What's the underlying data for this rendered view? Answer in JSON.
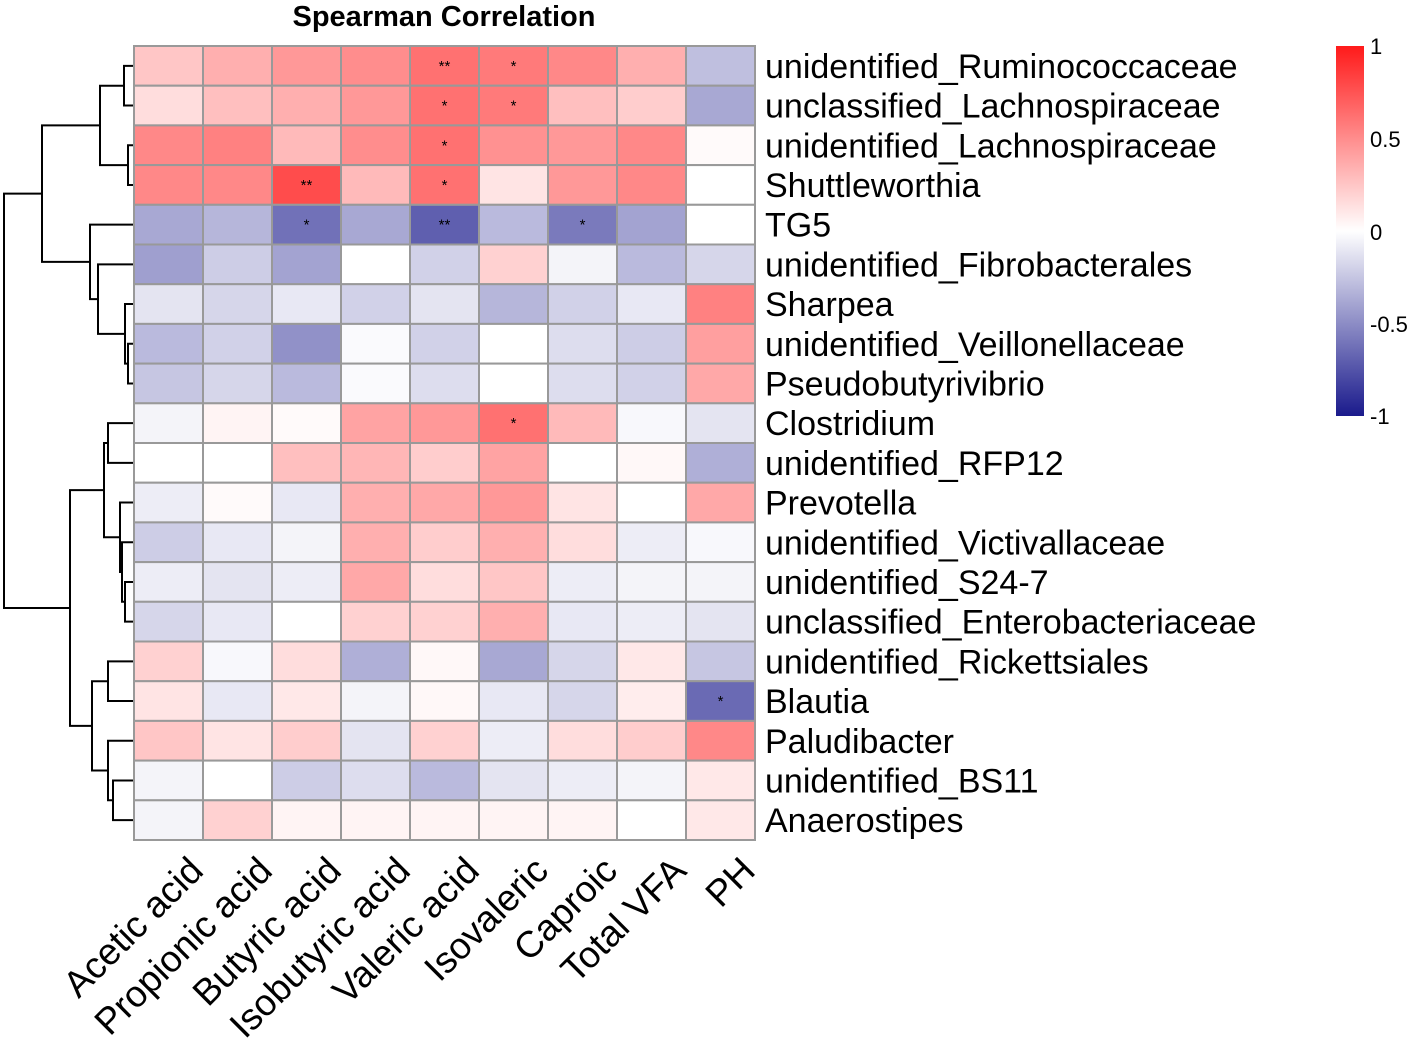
{
  "chart_data": {
    "type": "heatmap",
    "title": "Spearman Correlation",
    "columns": [
      "Acetic acid",
      "Propionic acid",
      "Butyric acid",
      "Isobutyric acid",
      "Valeric acid",
      "Isovaleric",
      "Caproic",
      "Total VFA",
      "PH"
    ],
    "rows": [
      "unidentified_Ruminococcaceae",
      "unclassified_Lachnospiraceae",
      "unidentified_Lachnospiraceae",
      "Shuttleworthia",
      "TG5",
      "unidentified_Fibrobacterales",
      "Sharpea",
      "unidentified_Veillonellaceae",
      "Pseudobutyrivibrio",
      "Clostridium",
      "unidentified_RFP12",
      "Prevotella",
      "unidentified_Victivallaceae",
      "unidentified_S24-7",
      "unclassified_Enterobacteriaceae",
      "unidentified_Rickettsiales",
      "Blautia",
      "Paludibacter",
      "unidentified_BS11",
      "Anaerostipes"
    ],
    "values": [
      [
        0.25,
        0.35,
        0.45,
        0.5,
        0.62,
        0.58,
        0.52,
        0.35,
        -0.28
      ],
      [
        0.15,
        0.28,
        0.35,
        0.45,
        0.62,
        0.58,
        0.28,
        0.22,
        -0.38
      ],
      [
        0.52,
        0.55,
        0.3,
        0.5,
        0.62,
        0.48,
        0.45,
        0.52,
        0.02
      ],
      [
        0.52,
        0.52,
        0.78,
        0.3,
        0.62,
        0.12,
        0.45,
        0.52,
        0.0
      ],
      [
        -0.38,
        -0.32,
        -0.62,
        -0.38,
        -0.7,
        -0.3,
        -0.58,
        -0.4,
        0.0
      ],
      [
        -0.42,
        -0.22,
        -0.4,
        0.0,
        -0.2,
        0.2,
        -0.05,
        -0.3,
        -0.18
      ],
      [
        -0.12,
        -0.18,
        -0.1,
        -0.2,
        -0.12,
        -0.32,
        -0.2,
        -0.1,
        0.55
      ],
      [
        -0.3,
        -0.2,
        -0.48,
        -0.02,
        -0.2,
        0.0,
        -0.15,
        -0.22,
        0.42
      ],
      [
        -0.25,
        -0.18,
        -0.3,
        -0.02,
        -0.15,
        0.0,
        -0.15,
        -0.2,
        0.38
      ],
      [
        -0.05,
        0.05,
        0.02,
        0.4,
        0.45,
        0.62,
        0.3,
        -0.03,
        -0.12
      ],
      [
        0.0,
        0.0,
        0.28,
        0.32,
        0.22,
        0.4,
        0.0,
        0.03,
        -0.35
      ],
      [
        -0.08,
        0.02,
        -0.1,
        0.35,
        0.38,
        0.45,
        0.12,
        0.0,
        0.38
      ],
      [
        -0.22,
        -0.1,
        -0.05,
        0.35,
        0.22,
        0.35,
        0.15,
        -0.08,
        -0.03
      ],
      [
        -0.08,
        -0.12,
        -0.08,
        0.38,
        0.15,
        0.25,
        -0.08,
        -0.05,
        -0.05
      ],
      [
        -0.18,
        -0.1,
        0.0,
        0.2,
        0.2,
        0.35,
        -0.1,
        -0.08,
        -0.12
      ],
      [
        0.2,
        -0.03,
        0.15,
        -0.35,
        0.03,
        -0.38,
        -0.18,
        0.1,
        -0.25
      ],
      [
        0.12,
        -0.1,
        0.1,
        -0.05,
        0.03,
        -0.1,
        -0.18,
        0.08,
        -0.65
      ],
      [
        0.25,
        0.12,
        0.22,
        -0.12,
        0.2,
        -0.08,
        0.15,
        0.22,
        0.52
      ],
      [
        -0.05,
        0.0,
        -0.22,
        -0.15,
        -0.3,
        -0.12,
        -0.08,
        -0.05,
        0.1
      ],
      [
        -0.05,
        0.2,
        0.05,
        0.05,
        0.05,
        0.05,
        0.05,
        0.0,
        0.1
      ]
    ],
    "significance": [
      [
        "",
        "",
        "",
        "",
        "**",
        "*",
        "",
        "",
        ""
      ],
      [
        "",
        "",
        "",
        "",
        "*",
        "*",
        "",
        "",
        ""
      ],
      [
        "",
        "",
        "",
        "",
        "*",
        "",
        "",
        "",
        ""
      ],
      [
        "",
        "",
        "**",
        "",
        "*",
        "",
        "",
        "",
        ""
      ],
      [
        "",
        "",
        "*",
        "",
        "**",
        "",
        "*",
        "",
        ""
      ],
      [
        "",
        "",
        "",
        "",
        "",
        "",
        "",
        "",
        ""
      ],
      [
        "",
        "",
        "",
        "",
        "",
        "",
        "",
        "",
        ""
      ],
      [
        "",
        "",
        "",
        "",
        "",
        "",
        "",
        "",
        ""
      ],
      [
        "",
        "",
        "",
        "",
        "",
        "",
        "",
        "",
        ""
      ],
      [
        "",
        "",
        "",
        "",
        "",
        "*",
        "",
        "",
        ""
      ],
      [
        "",
        "",
        "",
        "",
        "",
        "",
        "",
        "",
        ""
      ],
      [
        "",
        "",
        "",
        "",
        "",
        "",
        "",
        "",
        ""
      ],
      [
        "",
        "",
        "",
        "",
        "",
        "",
        "",
        "",
        ""
      ],
      [
        "",
        "",
        "",
        "",
        "",
        "",
        "",
        "",
        ""
      ],
      [
        "",
        "",
        "",
        "",
        "",
        "",
        "",
        "",
        ""
      ],
      [
        "",
        "",
        "",
        "",
        "",
        "",
        "",
        "",
        ""
      ],
      [
        "",
        "",
        "",
        "",
        "",
        "",
        "",
        "",
        "*"
      ],
      [
        "",
        "",
        "",
        "",
        "",
        "",
        "",
        "",
        ""
      ],
      [
        "",
        "",
        "",
        "",
        "",
        "",
        "",
        "",
        ""
      ],
      [
        "",
        "",
        "",
        "",
        "",
        "",
        "",
        "",
        ""
      ]
    ],
    "color_scale": {
      "min": -1,
      "max": 1,
      "low_color": "#1a1a8c",
      "mid_color": "#ffffff",
      "high_color": "#ff1a1a",
      "ticks": [
        "1",
        "0.5",
        "0",
        "-0.5",
        "-1"
      ]
    },
    "row_dendrogram": [
      [
        "unidentified_Ruminococcaceae",
        "unclassified_Lachnospiraceae"
      ],
      [
        "unidentified_Lachnospiraceae",
        "Shuttleworthia"
      ],
      [
        "unidentified_Veillonellaceae",
        "Pseudobutyrivibrio"
      ],
      [
        "Sharpea",
        "unidentified_Veillonellaceae+Pseudobutyrivibrio"
      ],
      [
        "unidentified_Fibrobacterales",
        "Sharpea group"
      ],
      [
        "TG5",
        "unidentified_Fibrobacterales group"
      ],
      [
        "Clostridium",
        "unidentified_RFP12"
      ],
      [
        "unidentified_S24-7",
        "unclassified_Enterobacteriaceae"
      ],
      [
        "unidentified_Victivallaceae",
        "unidentified_S24-7 group"
      ],
      [
        "Prevotella",
        "unidentified_Victivallaceae group"
      ],
      [
        "unidentified_BS11",
        "Anaerostipes"
      ],
      [
        "Paludibacter",
        "unidentified_BS11 group"
      ],
      [
        "unidentified_Rickettsiales",
        "Blautia"
      ]
    ]
  }
}
